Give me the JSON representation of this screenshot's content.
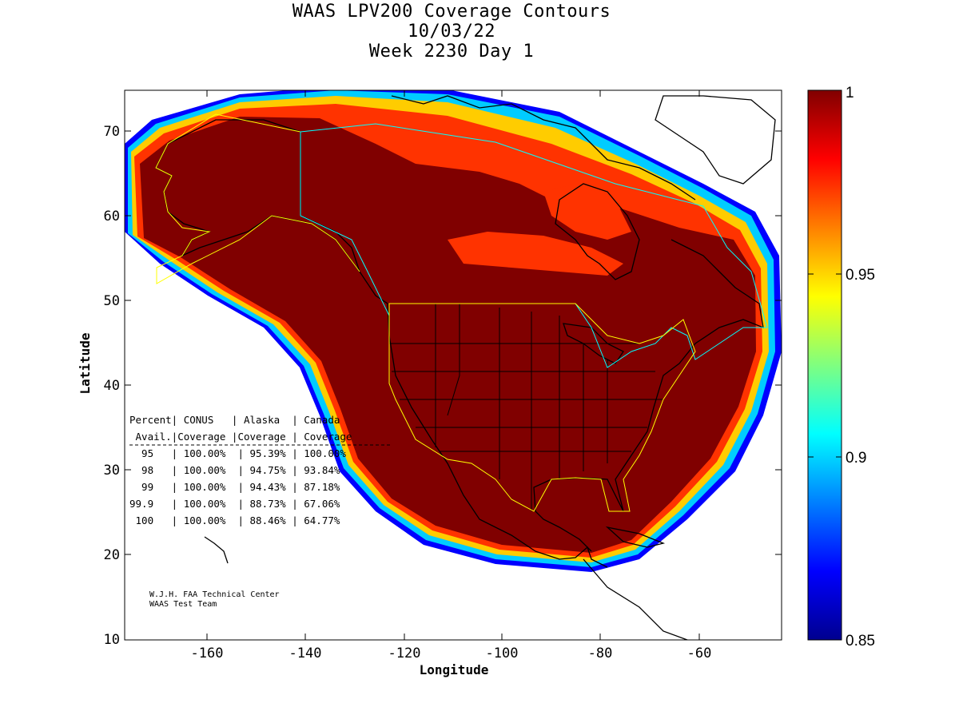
{
  "title": {
    "line1": "WAAS LPV200 Coverage Contours",
    "line2": "10/03/22",
    "line3": "Week 2230 Day 1"
  },
  "axes": {
    "xlabel": "Longitude",
    "ylabel": "Latitude",
    "x_ticks": [
      "-160",
      "-140",
      "-120",
      "-100",
      "-80",
      "-60"
    ],
    "y_ticks": [
      "70",
      "60",
      "50",
      "40",
      "30",
      "20",
      "10"
    ],
    "xlim": [
      -175,
      -50
    ],
    "ylim": [
      10,
      75
    ]
  },
  "colorbar": {
    "ticks": [
      "1",
      "0.95",
      "0.9",
      "0.85"
    ],
    "range": [
      0.85,
      1.0
    ],
    "colormap": "jet"
  },
  "table": {
    "header1": "Percent| CONUS   | Alaska  | Canada",
    "header2": " Avail.|Coverage |Coverage | Coverage",
    "rows": [
      "  95   | 100.00%  | 95.39% | 100.00%",
      "  98   | 100.00%  | 94.75% | 93.84%",
      "  99   | 100.00%  | 94.43% | 87.18%",
      "99.9   | 100.00%  | 88.73% | 67.06%",
      " 100   | 100.00%  | 88.46% | 64.77%"
    ]
  },
  "credit": {
    "line1": "W.J.H. FAA Technical Center",
    "line2": "WAAS Test Team"
  },
  "colors": {
    "coverage_max": "#800000",
    "alaska_border": "#ffff00",
    "canada_border": "#00ffff"
  }
}
